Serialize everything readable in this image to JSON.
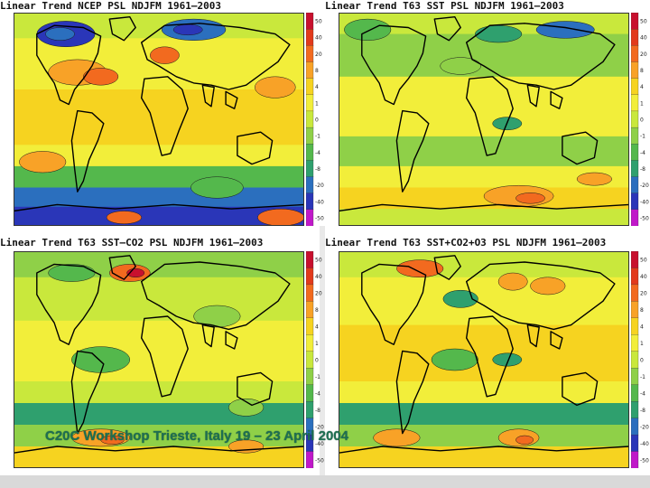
{
  "panels": [
    {
      "title": "Linear Trend NCEP PSL NDJFM 1961–2003",
      "variant": "ncep"
    },
    {
      "title": "Linear Trend T63 SST PSL NDJFM 1961–2003",
      "variant": "sst"
    },
    {
      "title": "Linear Trend T63 SST–CO2 PSL NDJFM 1961–2003",
      "variant": "co2"
    },
    {
      "title": "Linear Trend T63 SST+CO2+O3 PSL NDJFM 1961–2003",
      "variant": "o3"
    }
  ],
  "colorbar": {
    "ticks": [
      "50",
      "40",
      "20",
      "8",
      "4",
      "1",
      "0",
      "-1",
      "-4",
      "-8",
      "-20",
      "-40",
      "-50"
    ],
    "colors": [
      "#c8102e",
      "#e23a1c",
      "#f26a1f",
      "#f8a227",
      "#f6d320",
      "#f2ee3a",
      "#c9e83c",
      "#8fd048",
      "#54b84c",
      "#2fa06e",
      "#2b6fbe",
      "#2a36b8",
      "#c018c9"
    ]
  },
  "footer": "C20C Workshop Trieste, Italy 19 – 23 April 2004"
}
